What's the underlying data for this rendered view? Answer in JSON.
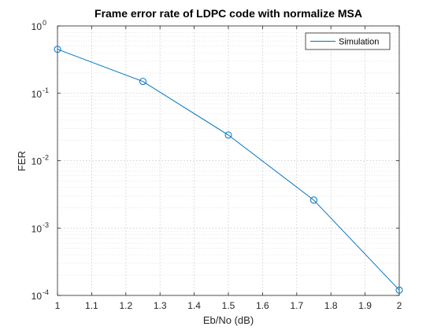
{
  "chart_data": {
    "type": "line",
    "title": "Frame error rate of LDPC code with normalize MSA",
    "xlabel": "Eb/No (dB)",
    "ylabel": "FER",
    "xlim": [
      1,
      2
    ],
    "ylim": [
      0.0001,
      1
    ],
    "yscale": "log",
    "x_ticks": [
      1,
      1.1,
      1.2,
      1.3,
      1.4,
      1.5,
      1.6,
      1.7,
      1.8,
      1.9,
      2
    ],
    "x_tick_labels": [
      "1",
      "1.1",
      "1.2",
      "1.3",
      "1.4",
      "1.5",
      "1.6",
      "1.7",
      "1.8",
      "1.9",
      "2"
    ],
    "y_ticks": [
      {
        "value": 1,
        "base": "10",
        "exp": "0"
      },
      {
        "value": 0.1,
        "base": "10",
        "exp": "-1"
      },
      {
        "value": 0.01,
        "base": "10",
        "exp": "-2"
      },
      {
        "value": 0.001,
        "base": "10",
        "exp": "-3"
      },
      {
        "value": 0.0001,
        "base": "10",
        "exp": "-4"
      }
    ],
    "grid": true,
    "minor_grid": true,
    "legend_position": "top-right",
    "series": [
      {
        "name": "Simulation",
        "color": "#0072BD",
        "marker": "circle",
        "x": [
          1,
          1.25,
          1.5,
          1.75,
          2
        ],
        "y": [
          0.45,
          0.15,
          0.024,
          0.0026,
          0.00012
        ]
      }
    ]
  }
}
